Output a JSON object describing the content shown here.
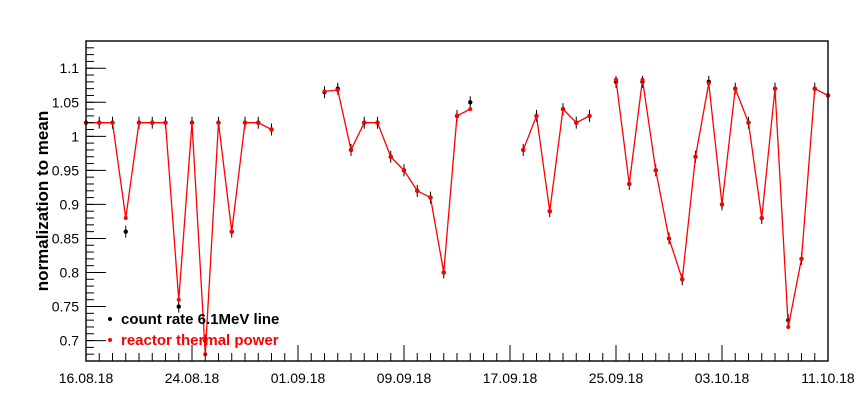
{
  "chart_data": {
    "type": "scatter",
    "title": "",
    "xlabel": "",
    "ylabel": "normalization to mean",
    "x_date_range": [
      "16.08.18",
      "11.10.18"
    ],
    "xlim": [
      "2018-08-16",
      "2018-10-11"
    ],
    "ylim": [
      0.67,
      1.14
    ],
    "x_ticks": [
      "16.08.18",
      "24.08.18",
      "01.09.18",
      "09.09.18",
      "17.09.18",
      "25.09.18",
      "03.10.18",
      "11.10.18"
    ],
    "y_ticks": [
      0.7,
      0.75,
      0.8,
      0.85,
      0.9,
      0.95,
      1,
      1.05,
      1.1
    ],
    "y_tick_labels": [
      "0.7",
      "0.75",
      "0.8",
      "0.85",
      "0.9",
      "0.95",
      "1",
      "1.05",
      "1.1"
    ],
    "legend_position": "bottom-left",
    "series": [
      {
        "name": "count rate 6.1MeV line",
        "color": "#000000",
        "style": "markers-with-error-bars",
        "x": [
          "2018-08-16",
          "2018-08-17",
          "2018-08-18",
          "2018-08-19",
          "2018-08-20",
          "2018-08-21",
          "2018-08-22",
          "2018-08-23",
          "2018-08-24",
          "2018-08-25",
          "2018-08-26",
          "2018-08-27",
          "2018-08-28",
          "2018-08-29",
          "2018-08-30",
          "2018-08-31",
          "2018-09-01",
          "2018-09-02",
          "2018-09-03",
          "2018-09-04",
          "2018-09-05",
          "2018-09-06",
          "2018-09-07",
          "2018-09-08",
          "2018-09-09",
          "2018-09-10",
          "2018-09-11",
          "2018-09-12",
          "2018-09-13",
          "2018-09-14",
          "2018-09-15",
          "2018-09-16",
          "2018-09-17",
          "2018-09-18",
          "2018-09-19",
          "2018-09-20",
          "2018-09-21",
          "2018-09-22",
          "2018-09-23",
          "2018-09-24",
          "2018-09-25",
          "2018-09-26",
          "2018-09-27",
          "2018-09-28",
          "2018-09-29",
          "2018-09-30",
          "2018-10-01",
          "2018-10-02",
          "2018-10-03",
          "2018-10-04",
          "2018-10-05",
          "2018-10-06",
          "2018-10-07",
          "2018-10-08",
          "2018-10-09",
          "2018-10-10",
          "2018-10-11"
        ],
        "y": [
          1.02,
          1.02,
          1.02,
          0.86,
          1.02,
          1.02,
          1.02,
          0.75,
          1.02,
          0.7,
          1.02,
          0.86,
          1.02,
          1.02,
          1.01,
          null,
          null,
          null,
          1.065,
          1.07,
          0.98,
          1.02,
          1.02,
          0.97,
          0.95,
          0.92,
          0.91,
          0.8,
          1.03,
          1.05,
          null,
          null,
          null,
          0.98,
          1.03,
          0.89,
          1.04,
          1.02,
          1.03,
          null,
          1.08,
          0.93,
          1.08,
          0.95,
          0.85,
          0.79,
          0.97,
          1.08,
          0.9,
          1.07,
          1.02,
          0.88,
          1.07,
          0.73,
          0.82,
          1.07,
          1.06
        ]
      },
      {
        "name": "reactor thermal power",
        "color": "#ff0000",
        "style": "line-with-markers",
        "x": [
          "2018-08-16",
          "2018-08-17",
          "2018-08-18",
          "2018-08-19",
          "2018-08-20",
          "2018-08-21",
          "2018-08-22",
          "2018-08-23",
          "2018-08-24",
          "2018-08-25",
          "2018-08-26",
          "2018-08-27",
          "2018-08-28",
          "2018-08-29",
          "2018-08-30",
          "2018-08-31",
          "2018-09-01",
          "2018-09-02",
          "2018-09-03",
          "2018-09-04",
          "2018-09-05",
          "2018-09-06",
          "2018-09-07",
          "2018-09-08",
          "2018-09-09",
          "2018-09-10",
          "2018-09-11",
          "2018-09-12",
          "2018-09-13",
          "2018-09-14",
          "2018-09-15",
          "2018-09-16",
          "2018-09-17",
          "2018-09-18",
          "2018-09-19",
          "2018-09-20",
          "2018-09-21",
          "2018-09-22",
          "2018-09-23",
          "2018-09-24",
          "2018-09-25",
          "2018-09-26",
          "2018-09-27",
          "2018-09-28",
          "2018-09-29",
          "2018-09-30",
          "2018-10-01",
          "2018-10-02",
          "2018-10-03",
          "2018-10-04",
          "2018-10-05",
          "2018-10-06",
          "2018-10-07",
          "2018-10-08",
          "2018-10-09",
          "2018-10-10",
          "2018-10-11"
        ],
        "y": [
          1.02,
          1.02,
          1.02,
          0.88,
          1.02,
          1.02,
          1.02,
          0.76,
          1.02,
          0.68,
          1.02,
          0.86,
          1.02,
          1.02,
          1.01,
          null,
          null,
          null,
          1.066,
          1.068,
          0.98,
          1.02,
          1.02,
          0.97,
          0.95,
          0.92,
          0.91,
          0.8,
          1.03,
          1.04,
          null,
          null,
          null,
          0.98,
          1.03,
          0.89,
          1.04,
          1.02,
          1.03,
          null,
          1.083,
          0.93,
          1.083,
          0.95,
          0.85,
          0.79,
          0.97,
          1.078,
          0.9,
          1.07,
          1.02,
          0.88,
          1.07,
          0.72,
          0.82,
          1.07,
          1.06
        ]
      }
    ]
  }
}
